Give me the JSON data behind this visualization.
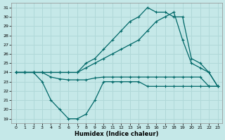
{
  "title": "",
  "xlabel": "Humidex (Indice chaleur)",
  "bg_color": "#c5e8e8",
  "grid_color": "#b0d8d8",
  "line_color": "#006868",
  "xlim": [
    -0.5,
    23.5
  ],
  "ylim": [
    18.5,
    31.5
  ],
  "yticks": [
    19,
    20,
    21,
    22,
    23,
    24,
    25,
    26,
    27,
    28,
    29,
    30,
    31
  ],
  "xticks": [
    0,
    1,
    2,
    3,
    4,
    5,
    6,
    7,
    8,
    9,
    10,
    11,
    12,
    13,
    14,
    15,
    16,
    17,
    18,
    19,
    20,
    21,
    22,
    23
  ],
  "lines": [
    {
      "x": [
        0,
        1,
        2,
        3,
        4,
        5,
        6,
        7,
        8,
        9,
        10,
        11,
        12,
        13,
        14,
        15,
        16,
        17,
        18,
        19,
        20,
        21,
        22,
        23
      ],
      "y": [
        24,
        24,
        24,
        23,
        21,
        20,
        19,
        19,
        19.5,
        21,
        23,
        23,
        23,
        23,
        23,
        22.5,
        22.5,
        22.5,
        22.5,
        22.5,
        22.5,
        22.5,
        22.5,
        22.5
      ]
    },
    {
      "x": [
        0,
        1,
        2,
        3,
        4,
        5,
        6,
        7,
        8,
        9,
        10,
        11,
        12,
        13,
        14,
        15,
        16,
        17,
        18,
        19,
        20,
        21,
        22,
        23
      ],
      "y": [
        24,
        24,
        24,
        24,
        23.5,
        23.3,
        23.2,
        23.2,
        23.2,
        23.4,
        23.5,
        23.5,
        23.5,
        23.5,
        23.5,
        23.5,
        23.5,
        23.5,
        23.5,
        23.5,
        23.5,
        23.5,
        22.5,
        22.5
      ]
    },
    {
      "x": [
        0,
        1,
        2,
        3,
        4,
        5,
        6,
        7,
        8,
        9,
        10,
        11,
        12,
        13,
        14,
        15,
        16,
        17,
        18,
        19,
        20,
        21,
        22,
        23
      ],
      "y": [
        24,
        24,
        24,
        24,
        24,
        24,
        24,
        24,
        24.5,
        25,
        25.5,
        26,
        26.5,
        27,
        27.5,
        28.5,
        29.5,
        30,
        30.5,
        27.5,
        25,
        24.5,
        24,
        22.5
      ]
    },
    {
      "x": [
        0,
        1,
        2,
        3,
        4,
        5,
        6,
        7,
        8,
        9,
        10,
        11,
        12,
        13,
        14,
        15,
        16,
        17,
        18,
        19,
        20,
        21,
        22,
        23
      ],
      "y": [
        24,
        24,
        24,
        24,
        24,
        24,
        24,
        24,
        25,
        25.5,
        26.5,
        27.5,
        28.5,
        29.5,
        30,
        31,
        30.5,
        30.5,
        30,
        30,
        25.5,
        25,
        24,
        22.5
      ]
    }
  ]
}
